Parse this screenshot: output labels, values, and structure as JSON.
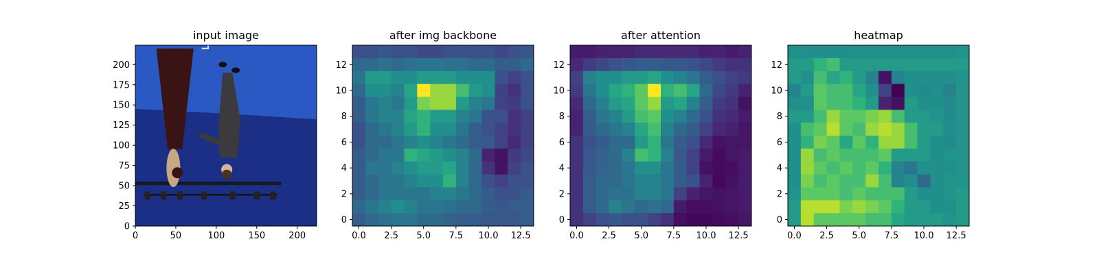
{
  "chart_data": [
    {
      "type": "image",
      "title": "input image",
      "xticks": [
        0,
        50,
        100,
        150,
        200
      ],
      "yticks": [
        0,
        25,
        50,
        75,
        100,
        125,
        150,
        175,
        200
      ],
      "xlim": [
        0,
        224
      ],
      "ylim": [
        224,
        0
      ],
      "description": "photo of two people dancing in a blue motion-capture studio",
      "colors": {
        "backdrop": "#1b2f86",
        "floor": "#2a59c4",
        "truss": "#15181f",
        "dress": "#3a1414",
        "suit": "#3b3b3f",
        "hair": "#c9a780",
        "skin": "#d9b39a"
      }
    },
    {
      "type": "heatmap",
      "title": "after img backbone",
      "colormap": "viridis",
      "xticks": [
        "0.0",
        "2.5",
        "5.0",
        "7.5",
        "10.0",
        "12.5"
      ],
      "yticks": [
        "0",
        "2",
        "4",
        "6",
        "8",
        "10",
        "12"
      ],
      "xlim": [
        -0.5,
        13.5
      ],
      "ylim": [
        13.5,
        -0.5
      ],
      "values": [
        [
          0.25,
          0.25,
          0.28,
          0.25,
          0.25,
          0.22,
          0.22,
          0.25,
          0.25,
          0.25,
          0.25,
          0.22,
          0.25,
          0.28
        ],
        [
          0.35,
          0.35,
          0.38,
          0.35,
          0.38,
          0.4,
          0.4,
          0.38,
          0.38,
          0.35,
          0.35,
          0.3,
          0.3,
          0.35
        ],
        [
          0.4,
          0.55,
          0.55,
          0.5,
          0.5,
          0.55,
          0.55,
          0.55,
          0.5,
          0.5,
          0.5,
          0.25,
          0.2,
          0.25
        ],
        [
          0.35,
          0.5,
          0.5,
          0.45,
          0.6,
          1.0,
          0.85,
          0.85,
          0.7,
          0.55,
          0.5,
          0.2,
          0.15,
          0.25
        ],
        [
          0.3,
          0.4,
          0.45,
          0.4,
          0.55,
          0.8,
          0.85,
          0.85,
          0.55,
          0.45,
          0.4,
          0.2,
          0.18,
          0.25
        ],
        [
          0.3,
          0.4,
          0.45,
          0.45,
          0.6,
          0.65,
          0.55,
          0.55,
          0.45,
          0.4,
          0.25,
          0.25,
          0.15,
          0.2
        ],
        [
          0.25,
          0.35,
          0.4,
          0.45,
          0.55,
          0.65,
          0.5,
          0.5,
          0.4,
          0.3,
          0.25,
          0.2,
          0.15,
          0.2
        ],
        [
          0.25,
          0.35,
          0.35,
          0.4,
          0.45,
          0.5,
          0.45,
          0.4,
          0.35,
          0.3,
          0.28,
          0.2,
          0.12,
          0.2
        ],
        [
          0.3,
          0.35,
          0.4,
          0.4,
          0.65,
          0.6,
          0.55,
          0.5,
          0.45,
          0.35,
          0.1,
          0.05,
          0.18,
          0.22
        ],
        [
          0.3,
          0.4,
          0.4,
          0.45,
          0.5,
          0.55,
          0.55,
          0.6,
          0.45,
          0.35,
          0.15,
          0.05,
          0.2,
          0.25
        ],
        [
          0.3,
          0.35,
          0.4,
          0.4,
          0.45,
          0.5,
          0.5,
          0.65,
          0.45,
          0.35,
          0.25,
          0.2,
          0.25,
          0.25
        ],
        [
          0.3,
          0.35,
          0.4,
          0.4,
          0.4,
          0.4,
          0.45,
          0.45,
          0.4,
          0.35,
          0.3,
          0.25,
          0.25,
          0.3
        ],
        [
          0.35,
          0.4,
          0.45,
          0.5,
          0.45,
          0.4,
          0.4,
          0.38,
          0.35,
          0.35,
          0.3,
          0.28,
          0.3,
          0.3
        ],
        [
          0.3,
          0.35,
          0.38,
          0.4,
          0.4,
          0.35,
          0.35,
          0.32,
          0.3,
          0.3,
          0.28,
          0.28,
          0.28,
          0.3
        ]
      ]
    },
    {
      "type": "heatmap",
      "title": "after attention",
      "colormap": "viridis",
      "xticks": [
        "0.0",
        "2.5",
        "5.0",
        "7.5",
        "10.0",
        "12.5"
      ],
      "yticks": [
        "0",
        "2",
        "4",
        "6",
        "8",
        "10",
        "12"
      ],
      "xlim": [
        -0.5,
        13.5
      ],
      "ylim": [
        13.5,
        -0.5
      ],
      "values": [
        [
          0.08,
          0.08,
          0.1,
          0.1,
          0.1,
          0.12,
          0.12,
          0.12,
          0.12,
          0.12,
          0.1,
          0.1,
          0.08,
          0.1
        ],
        [
          0.12,
          0.18,
          0.22,
          0.25,
          0.28,
          0.3,
          0.3,
          0.28,
          0.28,
          0.25,
          0.22,
          0.18,
          0.15,
          0.15
        ],
        [
          0.2,
          0.45,
          0.5,
          0.5,
          0.55,
          0.55,
          0.6,
          0.5,
          0.45,
          0.4,
          0.3,
          0.25,
          0.2,
          0.18
        ],
        [
          0.18,
          0.4,
          0.5,
          0.6,
          0.65,
          0.75,
          1.0,
          0.65,
          0.7,
          0.6,
          0.35,
          0.22,
          0.18,
          0.1
        ],
        [
          0.12,
          0.35,
          0.45,
          0.55,
          0.6,
          0.75,
          0.85,
          0.55,
          0.6,
          0.45,
          0.3,
          0.18,
          0.15,
          0.05
        ],
        [
          0.1,
          0.3,
          0.4,
          0.45,
          0.55,
          0.7,
          0.75,
          0.5,
          0.45,
          0.35,
          0.25,
          0.15,
          0.12,
          0.08
        ],
        [
          0.1,
          0.3,
          0.35,
          0.4,
          0.45,
          0.6,
          0.7,
          0.45,
          0.35,
          0.3,
          0.2,
          0.12,
          0.1,
          0.06
        ],
        [
          0.15,
          0.25,
          0.3,
          0.35,
          0.35,
          0.55,
          0.65,
          0.4,
          0.3,
          0.25,
          0.12,
          0.05,
          0.06,
          0.06
        ],
        [
          0.15,
          0.28,
          0.32,
          0.35,
          0.45,
          0.7,
          0.65,
          0.45,
          0.28,
          0.2,
          0.08,
          0.03,
          0.06,
          0.08
        ],
        [
          0.15,
          0.28,
          0.32,
          0.35,
          0.4,
          0.5,
          0.5,
          0.4,
          0.3,
          0.2,
          0.05,
          0.03,
          0.04,
          0.08
        ],
        [
          0.15,
          0.3,
          0.35,
          0.35,
          0.4,
          0.45,
          0.45,
          0.4,
          0.3,
          0.25,
          0.1,
          0.02,
          0.05,
          0.08
        ],
        [
          0.15,
          0.3,
          0.35,
          0.38,
          0.38,
          0.45,
          0.45,
          0.4,
          0.2,
          0.1,
          0.06,
          0.05,
          0.06,
          0.08
        ],
        [
          0.15,
          0.3,
          0.35,
          0.45,
          0.4,
          0.35,
          0.38,
          0.35,
          0.08,
          0.04,
          0.04,
          0.05,
          0.06,
          0.08
        ],
        [
          0.15,
          0.2,
          0.25,
          0.28,
          0.25,
          0.25,
          0.2,
          0.15,
          0.04,
          0.02,
          0.02,
          0.03,
          0.04,
          0.06
        ]
      ]
    },
    {
      "type": "heatmap",
      "title": "heatmap",
      "colormap": "viridis",
      "xticks": [
        "0.0",
        "2.5",
        "5.0",
        "7.5",
        "10.0",
        "12.5"
      ],
      "yticks": [
        "0",
        "2",
        "4",
        "6",
        "8",
        "10",
        "12"
      ],
      "xlim": [
        -0.5,
        13.5
      ],
      "ylim": [
        13.5,
        -0.5
      ],
      "values": [
        [
          0.5,
          0.5,
          0.5,
          0.5,
          0.5,
          0.5,
          0.5,
          0.5,
          0.5,
          0.5,
          0.5,
          0.5,
          0.5,
          0.52
        ],
        [
          0.55,
          0.55,
          0.65,
          0.7,
          0.55,
          0.55,
          0.55,
          0.55,
          0.55,
          0.55,
          0.55,
          0.55,
          0.55,
          0.55
        ],
        [
          0.55,
          0.5,
          0.7,
          0.6,
          0.65,
          0.55,
          0.45,
          0.05,
          0.45,
          0.5,
          0.5,
          0.5,
          0.5,
          0.52
        ],
        [
          0.45,
          0.55,
          0.75,
          0.7,
          0.7,
          0.6,
          0.5,
          0.2,
          0.0,
          0.5,
          0.48,
          0.5,
          0.45,
          0.52
        ],
        [
          0.5,
          0.5,
          0.75,
          0.7,
          0.7,
          0.65,
          0.55,
          0.1,
          0.05,
          0.55,
          0.5,
          0.5,
          0.48,
          0.52
        ],
        [
          0.55,
          0.55,
          0.7,
          0.85,
          0.75,
          0.75,
          0.8,
          0.85,
          0.7,
          0.55,
          0.55,
          0.52,
          0.48,
          0.52
        ],
        [
          0.5,
          0.7,
          0.75,
          0.9,
          0.75,
          0.7,
          0.85,
          0.9,
          0.85,
          0.7,
          0.55,
          0.55,
          0.5,
          0.52
        ],
        [
          0.5,
          0.65,
          0.8,
          0.75,
          0.6,
          0.75,
          0.65,
          0.85,
          0.85,
          0.7,
          0.55,
          0.5,
          0.48,
          0.52
        ],
        [
          0.5,
          0.85,
          0.7,
          0.75,
          0.7,
          0.7,
          0.7,
          0.75,
          0.55,
          0.55,
          0.55,
          0.5,
          0.52,
          0.52
        ],
        [
          0.5,
          0.85,
          0.75,
          0.7,
          0.75,
          0.7,
          0.75,
          0.65,
          0.45,
          0.4,
          0.5,
          0.5,
          0.5,
          0.52
        ],
        [
          0.5,
          0.8,
          0.7,
          0.75,
          0.7,
          0.7,
          0.85,
          0.7,
          0.45,
          0.5,
          0.35,
          0.5,
          0.52,
          0.52
        ],
        [
          0.52,
          0.75,
          0.75,
          0.75,
          0.7,
          0.75,
          0.7,
          0.7,
          0.7,
          0.55,
          0.5,
          0.5,
          0.52,
          0.55
        ],
        [
          0.55,
          0.9,
          0.9,
          0.9,
          0.8,
          0.85,
          0.8,
          0.75,
          0.65,
          0.55,
          0.55,
          0.5,
          0.5,
          0.55
        ],
        [
          0.55,
          0.9,
          0.75,
          0.75,
          0.75,
          0.75,
          0.7,
          0.7,
          0.6,
          0.55,
          0.55,
          0.55,
          0.52,
          0.55
        ]
      ]
    }
  ]
}
